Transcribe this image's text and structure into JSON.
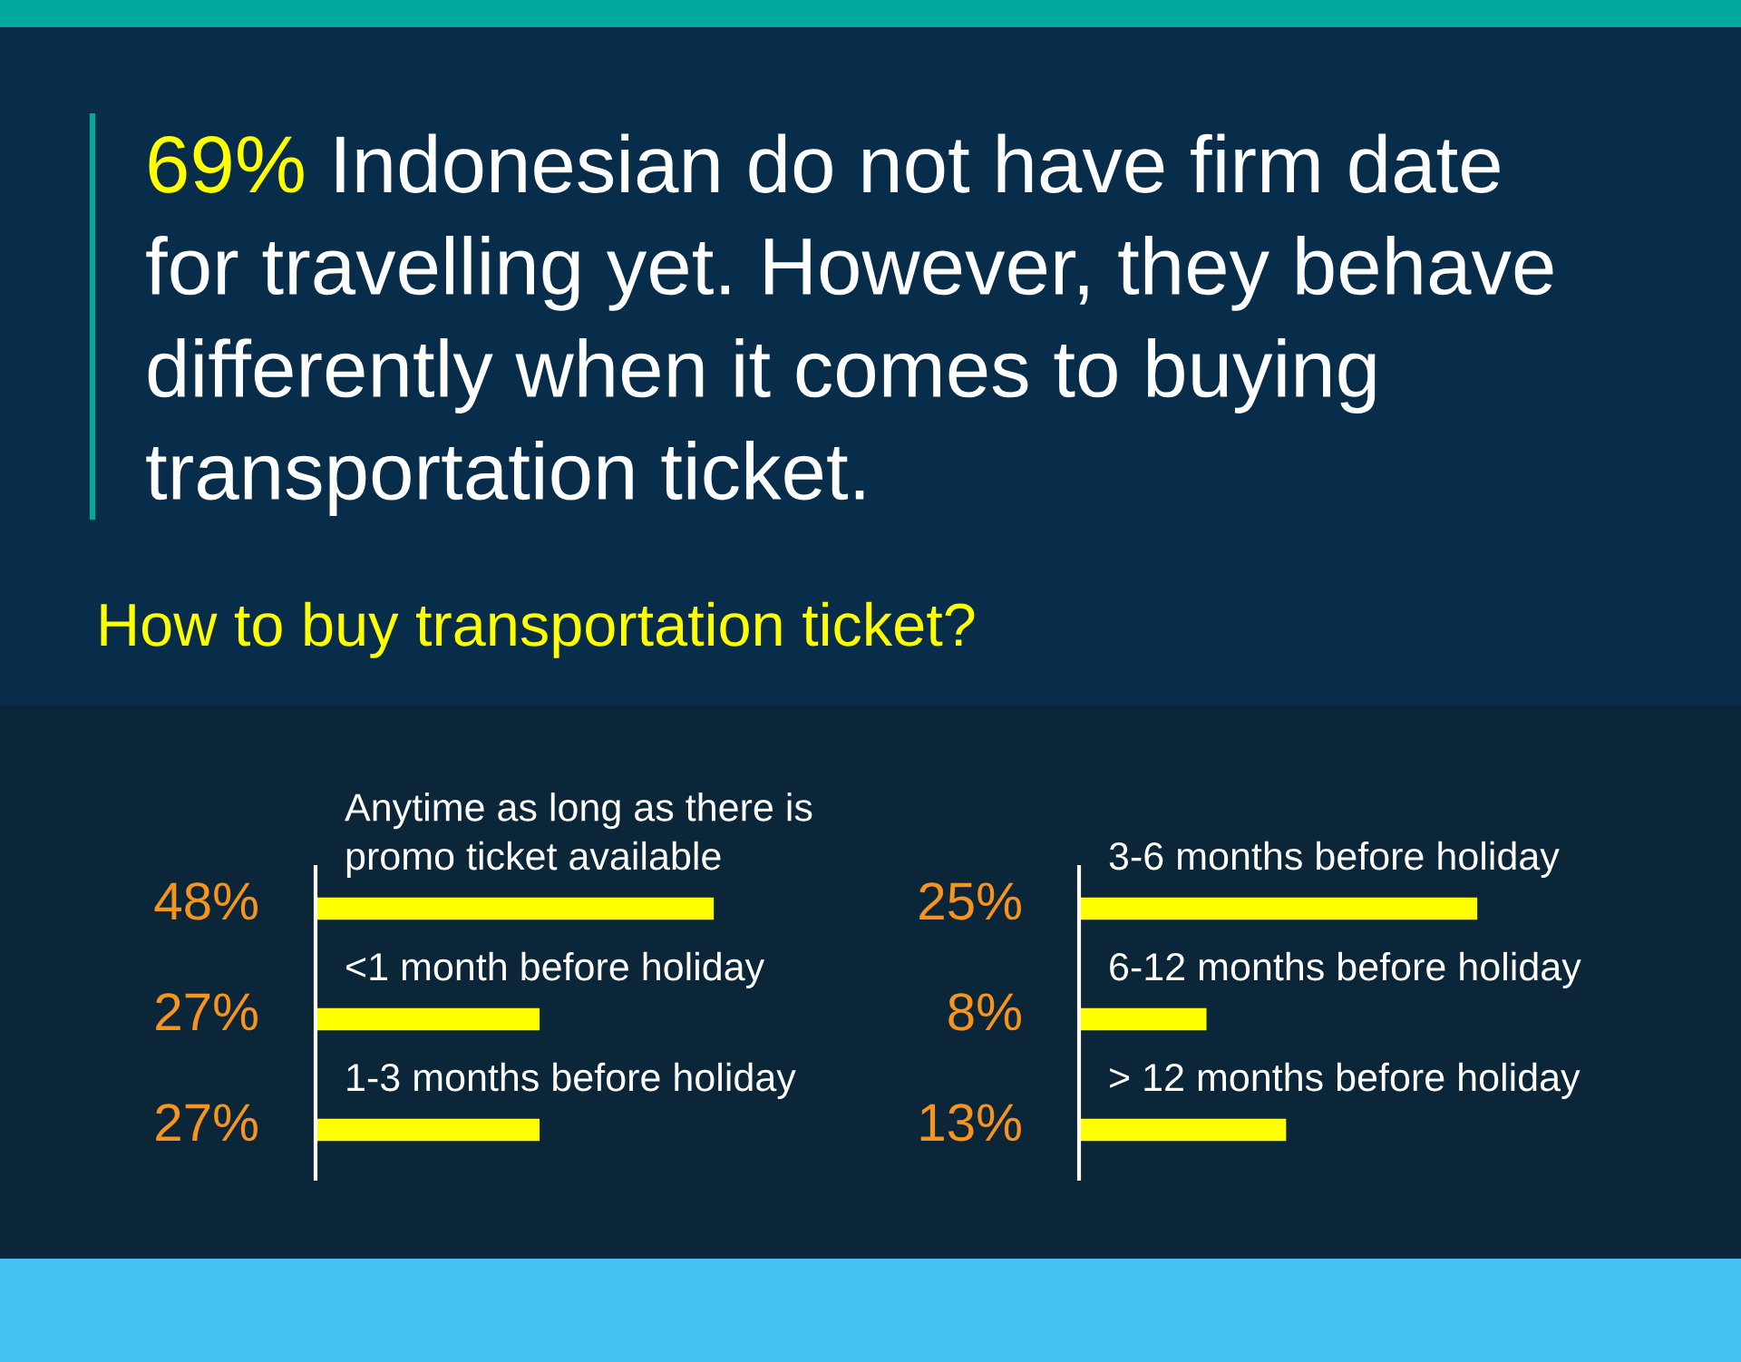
{
  "chart_data": [
    {
      "type": "bar",
      "orientation": "horizontal",
      "title": "69% Indonesian do not have firm date for travelling yet. However, they behave differently when it comes to buying transportation ticket.",
      "subtitle": "How to buy transportation ticket?",
      "categories": [
        "Anytime as long as there is promo ticket available",
        "<1 month before holiday",
        "1-3 months before holiday"
      ],
      "values": [
        48,
        27,
        27
      ],
      "value_labels": [
        "48%",
        "27%",
        "27%"
      ],
      "color": "#ffff00",
      "tick_labels": "y"
    },
    {
      "type": "bar",
      "orientation": "horizontal",
      "categories": [
        "3-6 months before holiday",
        "6-12 months before holiday",
        "> 12 months before holiday"
      ],
      "values": [
        25,
        8,
        13
      ],
      "value_labels": [
        "25%",
        "8%",
        "13%"
      ],
      "color": "#ffff00",
      "tick_labels": "y"
    }
  ]
}
